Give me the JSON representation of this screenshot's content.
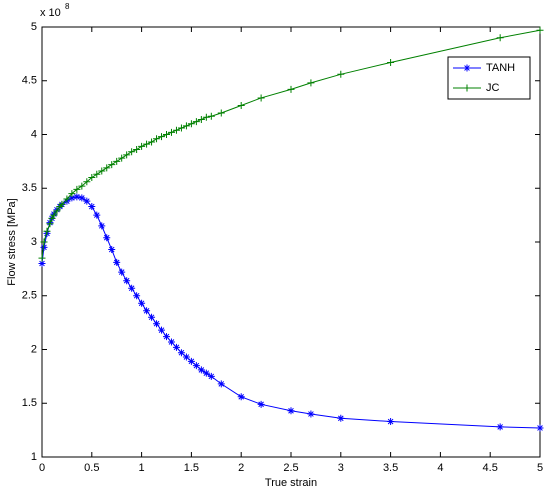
{
  "chart_data": {
    "type": "line",
    "xlabel": "True strain",
    "ylabel": "Flow stress [MPa]",
    "y_exponent_base": "x 10",
    "y_exponent": "8",
    "x": [
      0,
      0.02,
      0.05,
      0.08,
      0.1,
      0.12,
      0.15,
      0.18,
      0.2,
      0.25,
      0.3,
      0.35,
      0.4,
      0.45,
      0.5,
      0.55,
      0.6,
      0.65,
      0.7,
      0.75,
      0.8,
      0.85,
      0.9,
      0.95,
      1.0,
      1.05,
      1.1,
      1.15,
      1.2,
      1.25,
      1.3,
      1.35,
      1.4,
      1.45,
      1.5,
      1.55,
      1.6,
      1.65,
      1.7,
      1.8,
      2.0,
      2.2,
      2.5,
      2.7,
      3.0,
      3.5,
      4.6,
      5.0
    ],
    "series": [
      {
        "name": "TANH",
        "color": "#0000ff",
        "marker": "star",
        "values": [
          2.8,
          2.95,
          3.08,
          3.18,
          3.22,
          3.26,
          3.3,
          3.33,
          3.35,
          3.38,
          3.41,
          3.42,
          3.41,
          3.38,
          3.33,
          3.25,
          3.15,
          3.04,
          2.93,
          2.81,
          2.72,
          2.64,
          2.57,
          2.5,
          2.43,
          2.36,
          2.3,
          2.24,
          2.18,
          2.12,
          2.07,
          2.02,
          1.97,
          1.93,
          1.89,
          1.85,
          1.81,
          1.78,
          1.75,
          1.68,
          1.56,
          1.49,
          1.43,
          1.4,
          1.36,
          1.33,
          1.28,
          1.27
        ]
      },
      {
        "name": "JC",
        "color": "#008000",
        "marker": "plus",
        "values": [
          2.85,
          3.0,
          3.1,
          3.17,
          3.22,
          3.25,
          3.29,
          3.33,
          3.35,
          3.4,
          3.45,
          3.49,
          3.52,
          3.56,
          3.6,
          3.63,
          3.66,
          3.69,
          3.72,
          3.75,
          3.78,
          3.81,
          3.84,
          3.86,
          3.89,
          3.91,
          3.93,
          3.96,
          3.98,
          4.0,
          4.02,
          4.04,
          4.06,
          4.08,
          4.1,
          4.12,
          4.14,
          4.16,
          4.17,
          4.2,
          4.27,
          4.34,
          4.42,
          4.48,
          4.56,
          4.67,
          4.9,
          4.97
        ]
      }
    ],
    "xlim": [
      0,
      5
    ],
    "xticks": [
      0,
      0.5,
      1,
      1.5,
      2,
      2.5,
      3,
      3.5,
      4,
      4.5,
      5
    ],
    "ylim": [
      1,
      5
    ],
    "yticks": [
      1,
      1.5,
      2,
      2.5,
      3,
      3.5,
      4,
      4.5,
      5
    ],
    "grid": false,
    "legend": "upper-right"
  }
}
